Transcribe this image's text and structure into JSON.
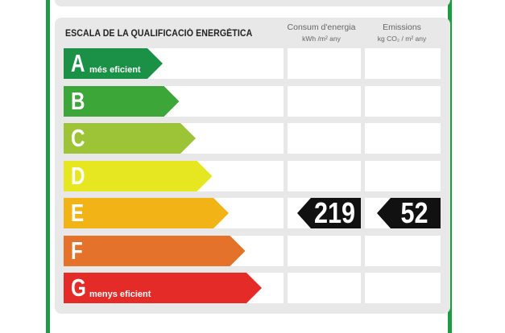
{
  "title": "ESCALA DE LA QUALIFICACIÓ ENERGÈTICA",
  "columns": {
    "consum": {
      "label": "Consum d'energia",
      "unit": "kWh /m² any"
    },
    "emissions": {
      "label": "Emissions",
      "unit": "kg CO₂ / m² any"
    }
  },
  "ratings": [
    {
      "letter": "A",
      "sublabel": "més eficient",
      "color": "#1b9148"
    },
    {
      "letter": "B",
      "sublabel": "",
      "color": "#3ca638"
    },
    {
      "letter": "C",
      "sublabel": "",
      "color": "#9cc436"
    },
    {
      "letter": "D",
      "sublabel": "",
      "color": "#e6e721"
    },
    {
      "letter": "E",
      "sublabel": "",
      "color": "#f2b317"
    },
    {
      "letter": "F",
      "sublabel": "",
      "color": "#e4722a"
    },
    {
      "letter": "G",
      "sublabel": "menys eficient",
      "color": "#e42b27"
    }
  ],
  "result": {
    "rating": "E",
    "consum_value": "219",
    "emissions_value": "52"
  }
}
